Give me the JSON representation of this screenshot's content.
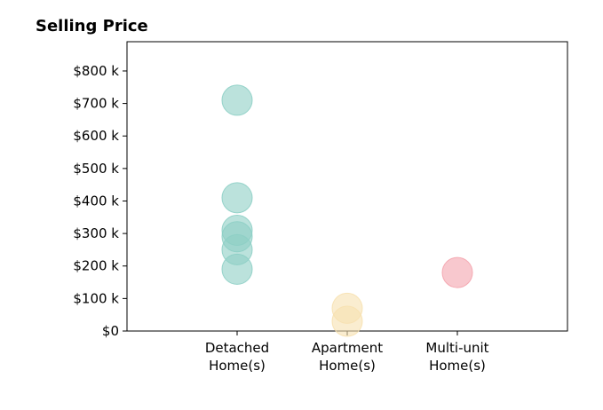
{
  "chart_data": {
    "type": "scatter",
    "title": "Selling Price",
    "xlabel": "",
    "ylabel": "",
    "categories": [
      "Detached\nHome(s)",
      "Apartment\nHome(s)",
      "Multi-unit\nHome(s)"
    ],
    "xlim": [
      0,
      4
    ],
    "ylim": [
      0,
      890000
    ],
    "y_ticks": [
      0,
      100000,
      200000,
      300000,
      400000,
      500000,
      600000,
      700000,
      800000
    ],
    "y_tick_labels": [
      "$0",
      "$100 k",
      "$200 k",
      "$300 k",
      "$400 k",
      "$500 k",
      "$600 k",
      "$700 k",
      "$800 k"
    ],
    "grid": false,
    "legend": "none",
    "series": [
      {
        "category": "Detached\nHome(s)",
        "x": 1,
        "values": [
          710000,
          410000,
          310000,
          290000,
          250000,
          190000
        ],
        "color": "#8dcfc5"
      },
      {
        "category": "Apartment\nHome(s)",
        "x": 2,
        "values": [
          70000,
          30000
        ],
        "color": "#f7e1b0"
      },
      {
        "category": "Multi-unit\nHome(s)",
        "x": 3,
        "values": [
          180000
        ],
        "color": "#f4a3ad"
      }
    ]
  }
}
